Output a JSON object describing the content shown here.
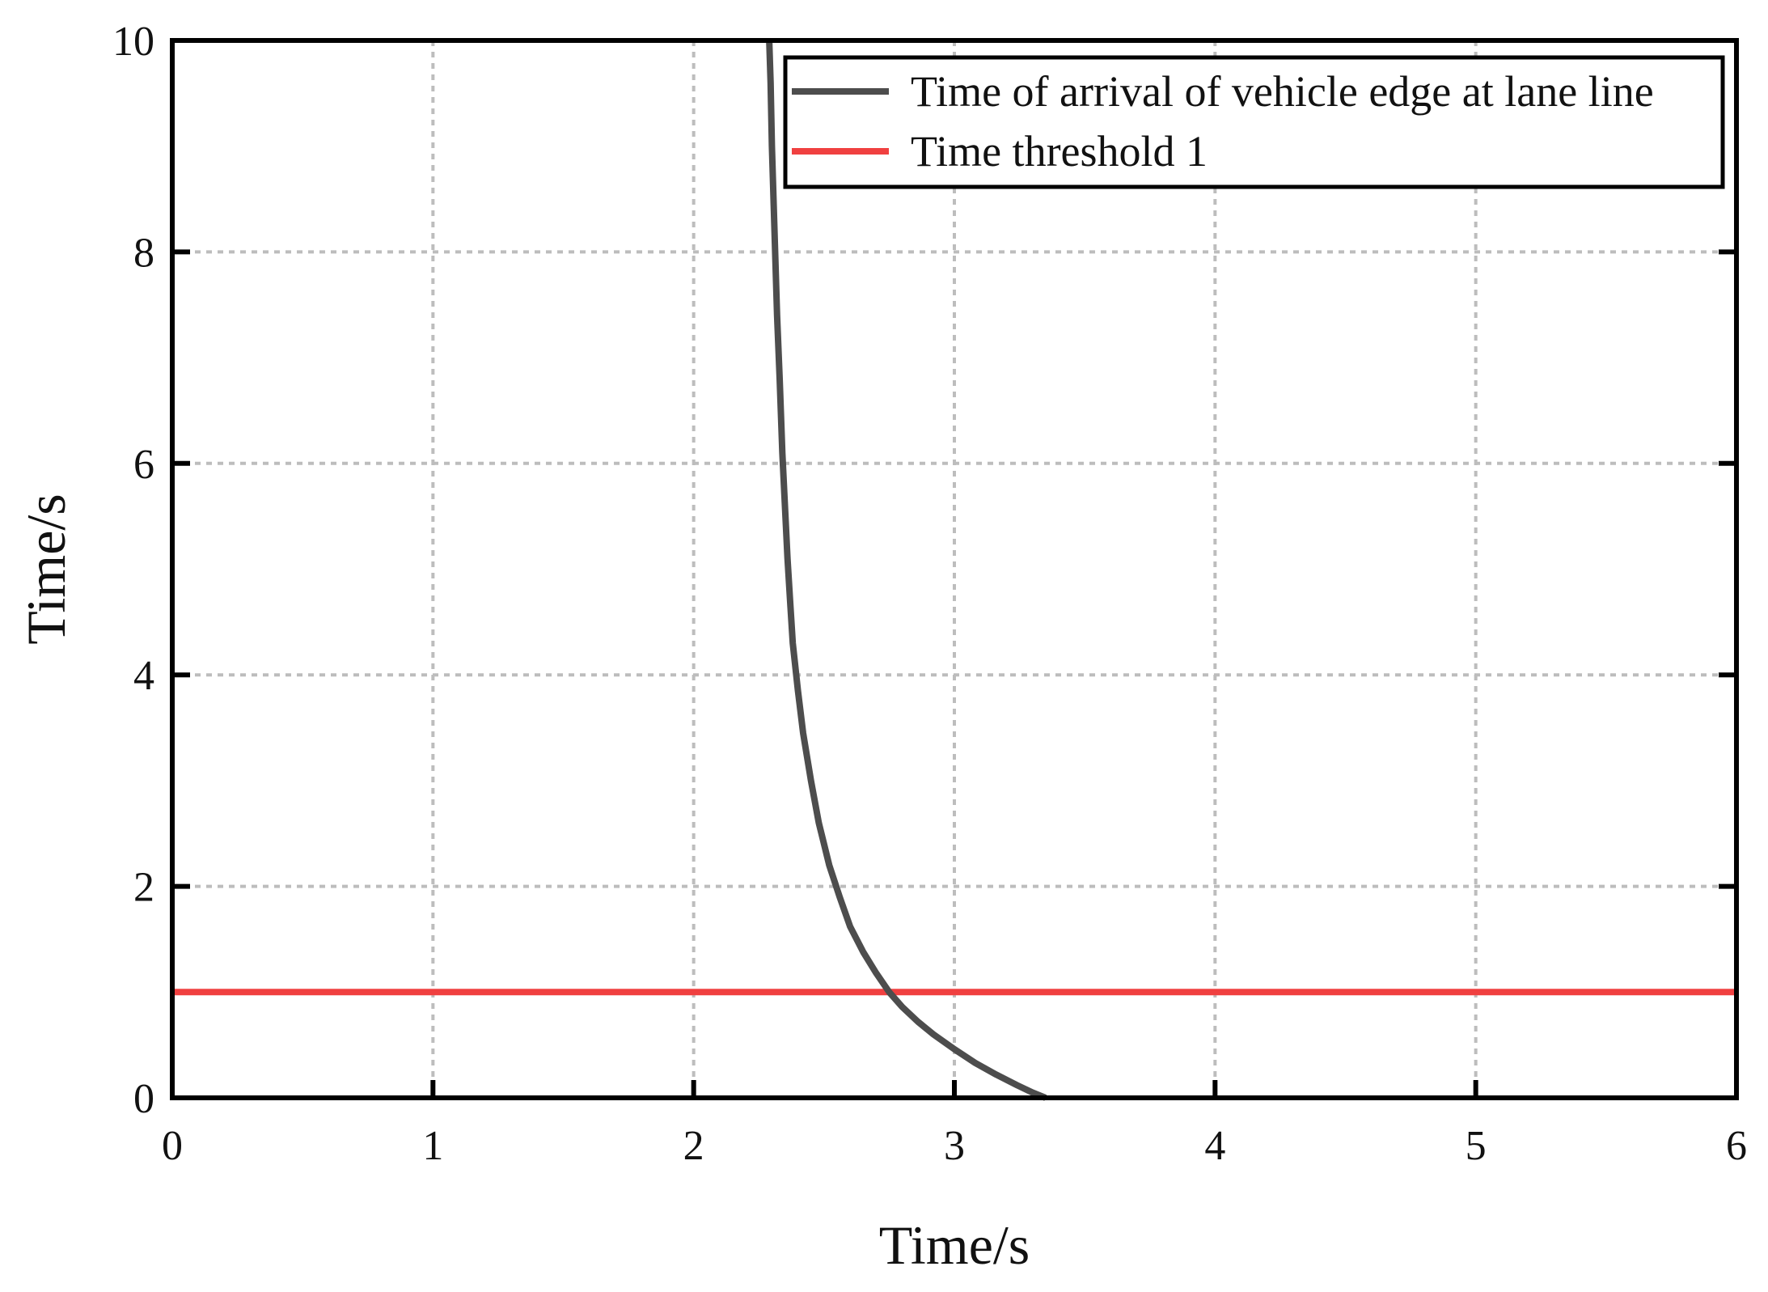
{
  "chart_data": {
    "type": "line",
    "title": "",
    "xlabel": "Time/s",
    "ylabel": "Time/s",
    "xlim": [
      0,
      6
    ],
    "ylim": [
      0,
      10
    ],
    "xticks": [
      0,
      1,
      2,
      3,
      4,
      5,
      6
    ],
    "yticks": [
      0,
      2,
      4,
      6,
      8,
      10
    ],
    "xtick_labels": [
      "0",
      "1",
      "2",
      "3",
      "4",
      "5",
      "6"
    ],
    "ytick_labels": [
      "0",
      "2",
      "4",
      "6",
      "8",
      "10"
    ],
    "grid": true,
    "legend_position": "top-right",
    "series": [
      {
        "name": "Time of arrival of vehicle edge at lane line",
        "color": "#4d4d4d",
        "x": [
          2.29,
          2.295,
          2.3,
          2.31,
          2.32,
          2.33,
          2.34,
          2.35,
          2.36,
          2.37,
          2.38,
          2.4,
          2.42,
          2.45,
          2.48,
          2.52,
          2.56,
          2.6,
          2.65,
          2.7,
          2.75,
          2.8,
          2.86,
          2.92,
          3.0,
          3.08,
          3.16,
          3.24,
          3.3,
          3.35
        ],
        "y": [
          10.0,
          9.6,
          9.0,
          8.2,
          7.4,
          6.8,
          6.1,
          5.6,
          5.1,
          4.7,
          4.3,
          3.85,
          3.45,
          3.0,
          2.6,
          2.2,
          1.9,
          1.62,
          1.38,
          1.18,
          1.0,
          0.86,
          0.72,
          0.6,
          0.46,
          0.33,
          0.22,
          0.12,
          0.05,
          0.0
        ]
      },
      {
        "name": "Time threshold 1",
        "color": "#f04040",
        "x": [
          0,
          6
        ],
        "y": [
          1,
          1
        ]
      }
    ]
  }
}
